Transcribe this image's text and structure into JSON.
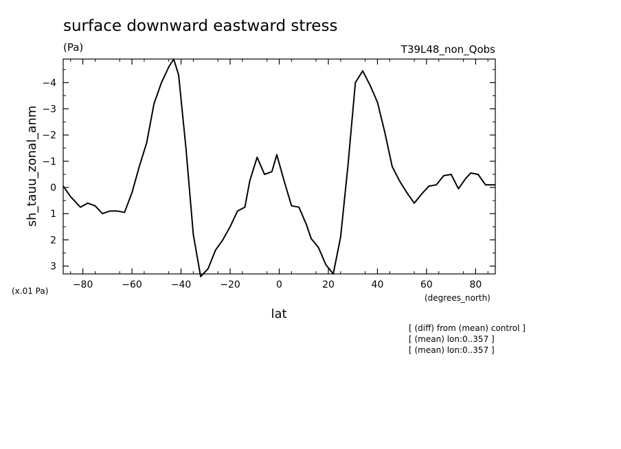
{
  "chart_data": {
    "type": "line",
    "title": "surface downward eastward stress",
    "units": "(Pa)",
    "experiment": "T39L48_non_Qobs",
    "ylabel": "sh_tauu_zonal_anm",
    "yscale_note": "(x.01 Pa)",
    "xlabel": "lat",
    "xunits": "(degrees_north)",
    "xlim": [
      -88,
      88
    ],
    "ylim": [
      3.3,
      -4.9
    ],
    "y_inverted": true,
    "x_ticks": [
      "-80",
      "-60",
      "-40",
      "-20",
      "0",
      "20",
      "40",
      "60",
      "80"
    ],
    "x_tick_values": [
      -80,
      -60,
      -40,
      -20,
      0,
      20,
      40,
      60,
      80
    ],
    "y_ticks": [
      "-4",
      "-3",
      "-2",
      "-1",
      "0",
      "1",
      "2",
      "3"
    ],
    "y_tick_values": [
      -4,
      -3,
      -2,
      -1,
      0,
      1,
      2,
      3
    ],
    "grid": false,
    "series": [
      {
        "x": [
          -88,
          -85,
          -81,
          -78,
          -75,
          -72,
          -69,
          -66,
          -63,
          -60,
          -57,
          -54,
          -51,
          -48,
          -45,
          -43,
          -41,
          -38,
          -35,
          -32,
          -29,
          -26,
          -23,
          -20,
          -17,
          -14,
          -12,
          -9,
          -6,
          -3,
          -1,
          2,
          5,
          8,
          11,
          13,
          16,
          19,
          22,
          25,
          28,
          31,
          34,
          37,
          40,
          43,
          46,
          49,
          52,
          55,
          58,
          61,
          64,
          67,
          70,
          73,
          76,
          78,
          81,
          84,
          88
        ],
        "y": [
          -0.05,
          0.35,
          0.75,
          0.6,
          0.7,
          1.0,
          0.9,
          0.9,
          0.95,
          0.2,
          -0.8,
          -1.7,
          -3.2,
          -4.0,
          -4.6,
          -4.9,
          -4.3,
          -1.5,
          1.8,
          3.4,
          3.1,
          2.4,
          2.0,
          1.5,
          0.9,
          0.75,
          -0.25,
          -1.15,
          -0.5,
          -0.6,
          -1.25,
          -0.25,
          0.7,
          0.75,
          1.4,
          1.95,
          2.3,
          2.95,
          3.3,
          1.9,
          -0.85,
          -4.0,
          -4.45,
          -3.9,
          -3.25,
          -2.1,
          -0.8,
          -0.25,
          0.2,
          0.6,
          0.25,
          -0.05,
          -0.1,
          -0.45,
          -0.5,
          0.05,
          -0.35,
          -0.55,
          -0.5,
          -0.1,
          -0.1
        ]
      }
    ]
  },
  "notes": [
    "[ (diff) from (mean) control ]",
    "[ (mean) lon:0..357 ]",
    "[ (mean) lon:0..357 ]"
  ]
}
